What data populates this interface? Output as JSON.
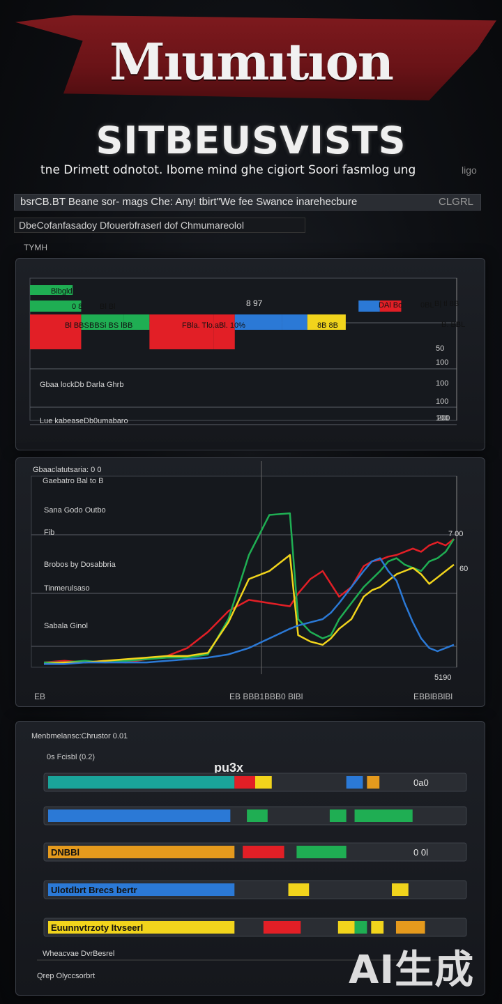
{
  "header": {
    "title": "Mıumıtıon",
    "subtitle": "SITBEUSVISTS",
    "tagline": "tne Drimett odnotot. Ibome mind ghe cigiort Soori fasmlog ung",
    "tagline_suffix": "ligo",
    "info_line": "bsrCB.BT Beane sor- mags Che: Any! tbirt\"We fee Swance inarehecbure",
    "info_line_tail": "CLGRL",
    "info_line2": "DbeCofanfasadoy Dfouerbfraserl dof Chmumareolol",
    "section_label": "TYMH"
  },
  "colors": {
    "red": "#e21f26",
    "green": "#1fae53",
    "blue": "#2b79d6",
    "yellow": "#f1d41c",
    "orange": "#e59a1d",
    "grid": "#5a5e66",
    "panel": "#1a1d22"
  },
  "chart_data": [
    {
      "type": "bar",
      "labels": {
        "top_center": "8 97",
        "left_label_1": "Gbaa lockDb Darla Ghrb",
        "left_label_2": "Lue kabeaseDb0umabaro",
        "bar_texts": [
          "Blbgld",
          "0 8",
          "Bl Bl",
          "Bl BBS",
          "BBSi BS lBB",
          "FBla. Tlo.aBl. 10%",
          "8B 8B",
          "DAl Bo",
          "0BL",
          "B| tl 8B",
          "B. BBL"
        ]
      },
      "y_ticks": [
        "50",
        "100",
        "100",
        "100",
        "100",
        "200"
      ],
      "rows": [
        {
          "segments": [
            {
              "start": 0,
              "value": 10,
              "color": "green"
            }
          ]
        },
        {
          "segments": [
            {
              "start": 0,
              "value": 12,
              "color": "green"
            },
            {
              "start": 77,
              "value": 5,
              "color": "blue"
            },
            {
              "start": 82,
              "value": 5,
              "color": "red"
            }
          ]
        },
        {
          "segments": [
            {
              "start": 0,
              "value": 12,
              "color": "red"
            },
            {
              "start": 12,
              "value": 10,
              "color": "green"
            },
            {
              "start": 22,
              "value": 6,
              "color": "green"
            },
            {
              "start": 28,
              "value": 15,
              "color": "red"
            },
            {
              "start": 43,
              "value": 5,
              "color": "red"
            },
            {
              "start": 48,
              "value": 11,
              "color": "blue"
            },
            {
              "start": 59,
              "value": 6,
              "color": "blue"
            },
            {
              "start": 65,
              "value": 9,
              "color": "yellow"
            }
          ]
        }
      ]
    },
    {
      "type": "line",
      "title": "Gbaaclatutsaria: 0 0",
      "subtitle": "Gaebatro Bal to B",
      "y_labels": [
        "Sana Godo Outbo",
        "Fib",
        "Brobos by Dosabbria",
        "Tinmerulsaso",
        "Sabala Ginol"
      ],
      "right_ticks": [
        "7 00",
        "60",
        "5190"
      ],
      "bottom_labels": [
        "EB",
        "EB BBB1BBB0 BlBl",
        "EBBlBBlBl"
      ],
      "x": [
        0,
        5,
        10,
        15,
        20,
        25,
        30,
        35,
        40,
        45,
        50,
        55,
        60,
        62,
        65,
        68,
        70,
        72,
        75,
        78,
        80,
        82,
        84,
        86,
        88,
        90,
        92,
        94,
        96,
        98,
        100
      ],
      "series": [
        {
          "color": "red",
          "values": [
            3,
            4,
            3,
            4,
            3,
            5,
            7,
            12,
            22,
            35,
            42,
            40,
            38,
            46,
            55,
            60,
            52,
            44,
            50,
            63,
            66,
            67,
            69,
            70,
            72,
            74,
            72,
            76,
            78,
            76,
            80
          ]
        },
        {
          "color": "green",
          "values": [
            3,
            3,
            4,
            3,
            4,
            5,
            6,
            6,
            8,
            30,
            70,
            95,
            96,
            30,
            22,
            18,
            20,
            30,
            40,
            50,
            55,
            60,
            66,
            68,
            64,
            62,
            60,
            66,
            68,
            72,
            80
          ]
        },
        {
          "color": "yellow",
          "values": [
            2,
            3,
            3,
            4,
            5,
            6,
            7,
            7,
            9,
            28,
            55,
            60,
            70,
            20,
            16,
            14,
            18,
            24,
            30,
            44,
            48,
            50,
            54,
            58,
            60,
            62,
            58,
            52,
            56,
            60,
            64
          ]
        },
        {
          "color": "blue",
          "values": [
            2,
            2,
            3,
            3,
            3,
            3,
            4,
            5,
            6,
            8,
            12,
            18,
            24,
            26,
            28,
            30,
            34,
            40,
            50,
            60,
            66,
            68,
            60,
            54,
            40,
            28,
            18,
            12,
            10,
            12,
            14
          ]
        }
      ]
    },
    {
      "type": "bar",
      "title": "Menbmelansc:Chrustor 0.01",
      "subtitle": "0s Fcisbl (0.2)",
      "center_label": "pu3x",
      "row_labels": [
        "",
        "",
        "DNBBl",
        "Ulotdbrt Brecs bertr",
        "Euunnvtrzoty Itvseerl"
      ],
      "row_tails": [
        "0a0",
        "",
        "0 0l",
        "",
        ""
      ],
      "footer_1": "Wheacvae DvrBesrel",
      "footer_2": "Qrep Olyccsorbrt",
      "rows": [
        {
          "segments": [
            {
              "start": 0,
              "value": 45,
              "color": "teal"
            },
            {
              "start": 45,
              "value": 5,
              "color": "red"
            },
            {
              "start": 50,
              "value": 4,
              "color": "yellow"
            },
            {
              "start": 72,
              "value": 4,
              "color": "blue"
            },
            {
              "start": 77,
              "value": 3,
              "color": "orange"
            }
          ]
        },
        {
          "segments": [
            {
              "start": 0,
              "value": 44,
              "color": "blue"
            },
            {
              "start": 48,
              "value": 5,
              "color": "green"
            },
            {
              "start": 68,
              "value": 4,
              "color": "green"
            },
            {
              "start": 74,
              "value": 14,
              "color": "green"
            }
          ]
        },
        {
          "segments": [
            {
              "start": 0,
              "value": 45,
              "color": "orange"
            },
            {
              "start": 47,
              "value": 10,
              "color": "red"
            },
            {
              "start": 60,
              "value": 12,
              "color": "green"
            }
          ]
        },
        {
          "segments": [
            {
              "start": 0,
              "value": 45,
              "color": "blue"
            },
            {
              "start": 58,
              "value": 5,
              "color": "yellow"
            },
            {
              "start": 83,
              "value": 4,
              "color": "yellow"
            }
          ]
        },
        {
          "segments": [
            {
              "start": 0,
              "value": 45,
              "color": "yellow"
            },
            {
              "start": 52,
              "value": 9,
              "color": "red"
            },
            {
              "start": 70,
              "value": 4,
              "color": "yellow"
            },
            {
              "start": 74,
              "value": 3,
              "color": "green"
            },
            {
              "start": 78,
              "value": 3,
              "color": "yellow"
            },
            {
              "start": 84,
              "value": 7,
              "color": "orange"
            }
          ]
        }
      ]
    }
  ],
  "watermark": "AI生成"
}
